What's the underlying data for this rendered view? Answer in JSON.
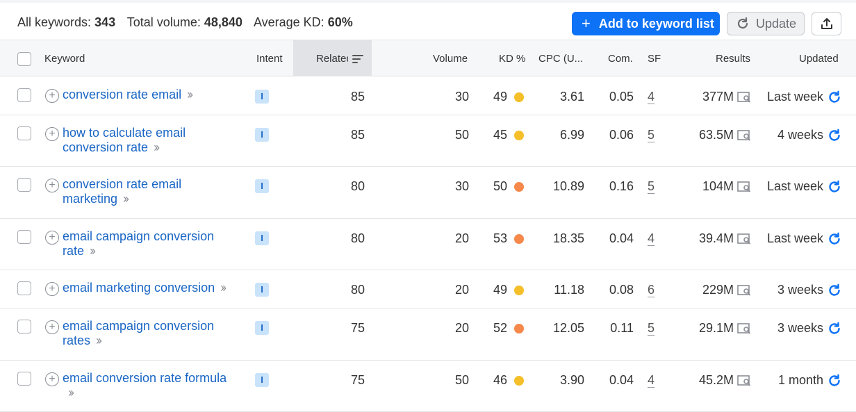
{
  "summary": {
    "all_keywords_label": "All keywords:",
    "all_keywords_value": "343",
    "total_volume_label": "Total volume:",
    "total_volume_value": "48,840",
    "avg_kd_label": "Average KD:",
    "avg_kd_value": "60%"
  },
  "toolbar": {
    "add_label": "Add to keyword list",
    "update_label": "Update"
  },
  "columns": {
    "keyword": "Keyword",
    "intent": "Intent",
    "related": "Related",
    "volume": "Volume",
    "kd": "KD %",
    "cpc": "CPC (U...",
    "com": "Com.",
    "sf": "SF",
    "results": "Results",
    "updated": "Updated"
  },
  "colors": {
    "accent": "#0d72f5",
    "link": "#1a66c5",
    "kd_yellow": "#f5bf2a",
    "kd_orange": "#f5884a"
  },
  "rows": [
    {
      "keyword_line1": "conversion rate email",
      "keyword_line2": "",
      "intent": "I",
      "related": "85",
      "volume": "30",
      "kd": "49",
      "kd_color": "#f5bf2a",
      "cpc": "3.61",
      "com": "0.05",
      "sf": "4",
      "results": "377M",
      "updated": "Last week"
    },
    {
      "keyword_line1": "how to calculate email",
      "keyword_line2": "conversion rate",
      "intent": "I",
      "related": "85",
      "volume": "50",
      "kd": "45",
      "kd_color": "#f5bf2a",
      "cpc": "6.99",
      "com": "0.06",
      "sf": "5",
      "results": "63.5M",
      "updated": "4 weeks"
    },
    {
      "keyword_line1": "conversion rate email",
      "keyword_line2": "marketing",
      "intent": "I",
      "related": "80",
      "volume": "30",
      "kd": "50",
      "kd_color": "#f5884a",
      "cpc": "10.89",
      "com": "0.16",
      "sf": "5",
      "results": "104M",
      "updated": "Last week"
    },
    {
      "keyword_line1": "email campaign conversion",
      "keyword_line2": "rate",
      "intent": "I",
      "related": "80",
      "volume": "20",
      "kd": "53",
      "kd_color": "#f5884a",
      "cpc": "18.35",
      "com": "0.04",
      "sf": "4",
      "results": "39.4M",
      "updated": "Last week"
    },
    {
      "keyword_line1": "email marketing conversion",
      "keyword_line2": "",
      "intent": "I",
      "related": "80",
      "volume": "20",
      "kd": "49",
      "kd_color": "#f5bf2a",
      "cpc": "11.18",
      "com": "0.08",
      "sf": "6",
      "results": "229M",
      "updated": "3 weeks"
    },
    {
      "keyword_line1": "email campaign conversion",
      "keyword_line2": "rates",
      "intent": "I",
      "related": "75",
      "volume": "20",
      "kd": "52",
      "kd_color": "#f5884a",
      "cpc": "12.05",
      "com": "0.11",
      "sf": "5",
      "results": "29.1M",
      "updated": "3 weeks"
    },
    {
      "keyword_line1": "email conversion rate formula",
      "keyword_line2": "",
      "intent": "I",
      "related": "75",
      "volume": "50",
      "kd": "46",
      "kd_color": "#f5bf2a",
      "cpc": "3.90",
      "com": "0.04",
      "sf": "4",
      "results": "45.2M",
      "updated": "1 month",
      "chevron_wrap": true
    }
  ]
}
